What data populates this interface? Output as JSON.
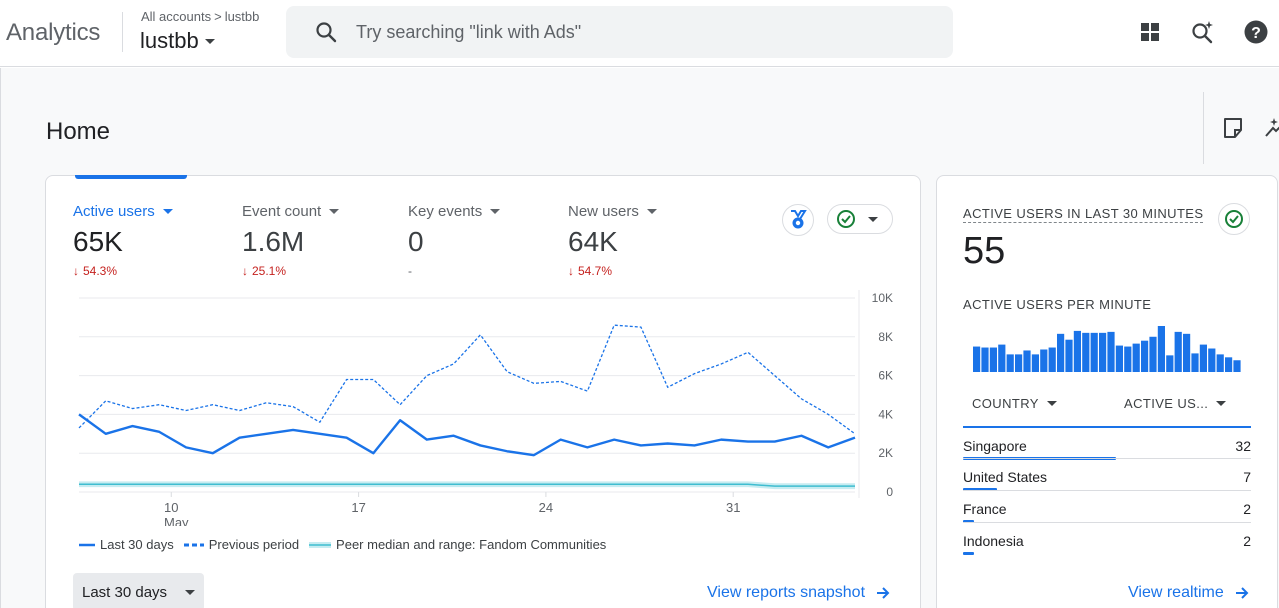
{
  "app": {
    "name": "Analytics"
  },
  "breadcrumb": {
    "all_accounts": "All accounts",
    "separator": ">",
    "account": "lustbb"
  },
  "property": {
    "name": "lustbb"
  },
  "search": {
    "placeholder": "Try searching \"link with Ads\""
  },
  "toolbar_icons": [
    "apps-grid-icon",
    "search-insights-icon",
    "help-icon"
  ],
  "page": {
    "title": "Home"
  },
  "overview": {
    "metrics": [
      {
        "label": "Active users",
        "value": "65K",
        "change": "54.3%",
        "direction": "down",
        "active": true
      },
      {
        "label": "Event count",
        "value": "1.6M",
        "change": "25.1%",
        "direction": "down",
        "active": false
      },
      {
        "label": "Key events",
        "value": "0",
        "change": "-",
        "direction": "none",
        "active": false
      },
      {
        "label": "New users",
        "value": "64K",
        "change": "54.7%",
        "direction": "down",
        "active": false
      }
    ],
    "legend": {
      "current": "Last 30 days",
      "previous": "Previous period",
      "peer": "Peer median and range: Fandom Communities"
    },
    "range_label": "Last 30 days",
    "link_label": "View reports snapshot"
  },
  "chart_data": {
    "type": "line",
    "x_ticks": [
      {
        "label": "10",
        "sub": "May",
        "index": 3
      },
      {
        "label": "17",
        "sub": "",
        "index": 10
      },
      {
        "label": "24",
        "sub": "",
        "index": 17
      },
      {
        "label": "31",
        "sub": "",
        "index": 24
      }
    ],
    "y_ticks": [
      "0",
      "2K",
      "4K",
      "6K",
      "8K",
      "10K"
    ],
    "ylim": [
      0,
      10000
    ],
    "y_axis_side": "right",
    "grid": true,
    "series": [
      {
        "name": "Last 30 days",
        "style": "solid",
        "color": "#1a73e8",
        "values": [
          4000,
          3000,
          3400,
          3100,
          2300,
          2000,
          2800,
          3000,
          3200,
          3000,
          2800,
          2000,
          3700,
          2700,
          2900,
          2400,
          2100,
          1900,
          2700,
          2300,
          2700,
          2400,
          2500,
          2400,
          2700,
          2600,
          2600,
          2900,
          2300,
          2800
        ]
      },
      {
        "name": "Previous period",
        "style": "dashed",
        "color": "#1a73e8",
        "values": [
          3300,
          4700,
          4300,
          4500,
          4200,
          4500,
          4200,
          4600,
          4400,
          3600,
          5800,
          5800,
          4500,
          6000,
          6600,
          8100,
          6200,
          5600,
          5700,
          5200,
          8600,
          8500,
          5400,
          6100,
          6600,
          7200,
          6000,
          4800,
          4000,
          3000
        ]
      },
      {
        "name": "Peer median and range: Fandom Communities",
        "style": "band",
        "color": "#9ad9e3",
        "values": [
          400,
          400,
          400,
          400,
          400,
          400,
          400,
          400,
          400,
          400,
          400,
          400,
          400,
          400,
          400,
          400,
          400,
          400,
          400,
          400,
          400,
          400,
          400,
          400,
          400,
          400,
          300,
          300,
          300,
          300
        ]
      }
    ]
  },
  "realtime": {
    "title": "ACTIVE USERS IN LAST 30 MINUTES",
    "value": "55",
    "per_minute_title": "ACTIVE USERS PER MINUTE",
    "per_minute": [
      2.6,
      2.5,
      2.5,
      2.8,
      1.8,
      1.8,
      2.2,
      1.8,
      2.3,
      2.5,
      3.9,
      3.3,
      4.2,
      4.0,
      4.0,
      4.0,
      4.1,
      2.7,
      2.6,
      2.9,
      3.2,
      3.6,
      4.7,
      1.7,
      4.1,
      3.9,
      1.9,
      2.8,
      2.4,
      1.8,
      1.5,
      1.2
    ],
    "col_country": "COUNTRY",
    "col_users": "ACTIVE US...",
    "rows": [
      {
        "country": "Singapore",
        "value": "32",
        "ratio": 1.0
      },
      {
        "country": "United States",
        "value": "7",
        "ratio": 0.22
      },
      {
        "country": "France",
        "value": "2",
        "ratio": 0.07
      },
      {
        "country": "Indonesia",
        "value": "2",
        "ratio": 0.07
      }
    ],
    "link_label": "View realtime"
  }
}
